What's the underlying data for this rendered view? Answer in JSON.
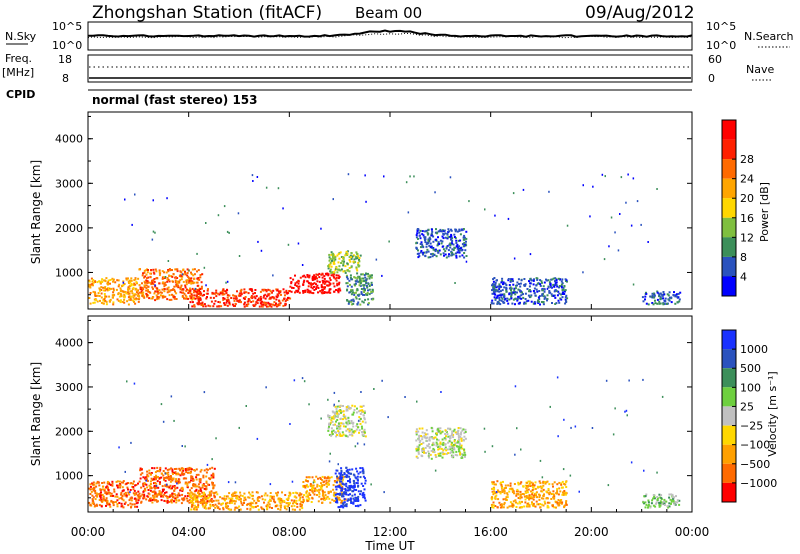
{
  "header": {
    "station": "Zhongshan Station (fitACF)",
    "beam": "Beam 00",
    "date": "09/Aug/2012"
  },
  "top_panels": {
    "nsky_label": "N.Sky",
    "nsearch_label": "N.Search",
    "noise_ticks": [
      "10^5",
      "10^0"
    ],
    "freq_label_1": "Freq.",
    "freq_label_2": "[MHz]",
    "freq_ticks": [
      "18",
      "8"
    ],
    "nave_label": "Nave",
    "nave_ticks": [
      "60",
      "0"
    ],
    "cpid_label": "CPID",
    "cpid_text": "normal (fast stereo) 153"
  },
  "colors": {
    "power": [
      "#0000ff",
      "#2a52be",
      "#3c8f5a",
      "#7fbf3f",
      "#ffd700",
      "#ffa500",
      "#ff6a00",
      "#ff2000",
      "#ff0000"
    ],
    "velocity": [
      "#1a32ff",
      "#2a52be",
      "#3c8f5a",
      "#6ecf3f",
      "#c0c0c0",
      "#ffd700",
      "#ffa000",
      "#ff6a00",
      "#ff0000"
    ]
  },
  "chart_data": [
    {
      "type": "heatmap",
      "name": "power",
      "xlabel": "",
      "ylabel": "Slant Range [km]",
      "xlim": [
        0,
        24
      ],
      "ylim": [
        180,
        4600
      ],
      "yticks": [
        1000,
        2000,
        3000,
        4000
      ],
      "ytick_labels": [
        "1000",
        "2000",
        "3000",
        "4000"
      ],
      "colorbar": {
        "label": "Power [dB]",
        "ticks": [
          "4",
          "8",
          "12",
          "16",
          "20",
          "24",
          "28"
        ]
      },
      "regions": [
        {
          "t0": 0.0,
          "t1": 2.0,
          "r0": 300,
          "r1": 900,
          "level": 5
        },
        {
          "t0": 2.0,
          "t1": 4.5,
          "r0": 400,
          "r1": 1100,
          "level": 6
        },
        {
          "t0": 4.0,
          "t1": 8.0,
          "r0": 250,
          "r1": 650,
          "level": 7
        },
        {
          "t0": 8.0,
          "t1": 10.0,
          "r0": 550,
          "r1": 1000,
          "level": 8
        },
        {
          "t0": 9.5,
          "t1": 10.8,
          "r0": 1000,
          "r1": 1500,
          "level": 3
        },
        {
          "t0": 10.2,
          "t1": 11.3,
          "r0": 300,
          "r1": 1000,
          "level": 2
        },
        {
          "t0": 13.0,
          "t1": 15.0,
          "r0": 1350,
          "r1": 2000,
          "level": 1
        },
        {
          "t0": 16.0,
          "t1": 19.0,
          "r0": 300,
          "r1": 900,
          "level": 1
        },
        {
          "t0": 22.0,
          "t1": 23.5,
          "r0": 300,
          "r1": 600,
          "level": 1
        }
      ]
    },
    {
      "type": "heatmap",
      "name": "velocity",
      "xlabel": "Time UT",
      "ylabel": "Slant Range [km]",
      "xlim": [
        0,
        24
      ],
      "ylim": [
        180,
        4600
      ],
      "yticks": [
        1000,
        2000,
        3000,
        4000
      ],
      "ytick_labels": [
        "1000",
        "2000",
        "3000",
        "4000"
      ],
      "xticks": [
        0,
        4,
        8,
        12,
        16,
        20,
        24
      ],
      "xtick_labels": [
        "00:00",
        "04:00",
        "08:00",
        "12:00",
        "16:00",
        "20:00",
        "00:00"
      ],
      "colorbar": {
        "label": "Velocity [m s⁻¹]",
        "ticks": [
          "1000",
          "500",
          "100",
          "25",
          "−25",
          "−100",
          "−500",
          "−1000"
        ]
      },
      "regions": [
        {
          "t0": 0.0,
          "t1": 2.0,
          "r0": 300,
          "r1": 900,
          "level": 7
        },
        {
          "t0": 2.0,
          "t1": 5.0,
          "r0": 400,
          "r1": 1200,
          "level": 7
        },
        {
          "t0": 4.0,
          "t1": 8.5,
          "r0": 250,
          "r1": 650,
          "level": 6
        },
        {
          "t0": 8.5,
          "t1": 10.2,
          "r0": 400,
          "r1": 1000,
          "level": 6
        },
        {
          "t0": 9.8,
          "t1": 11.0,
          "r0": 300,
          "r1": 1200,
          "level": 0
        },
        {
          "t0": 9.5,
          "t1": 11.0,
          "r0": 1900,
          "r1": 2600,
          "level": 4
        },
        {
          "t0": 13.0,
          "t1": 15.0,
          "r0": 1400,
          "r1": 2100,
          "level": 4
        },
        {
          "t0": 16.0,
          "t1": 19.0,
          "r0": 300,
          "r1": 900,
          "level": 6
        },
        {
          "t0": 22.0,
          "t1": 23.5,
          "r0": 300,
          "r1": 600,
          "level": 3
        }
      ]
    }
  ]
}
